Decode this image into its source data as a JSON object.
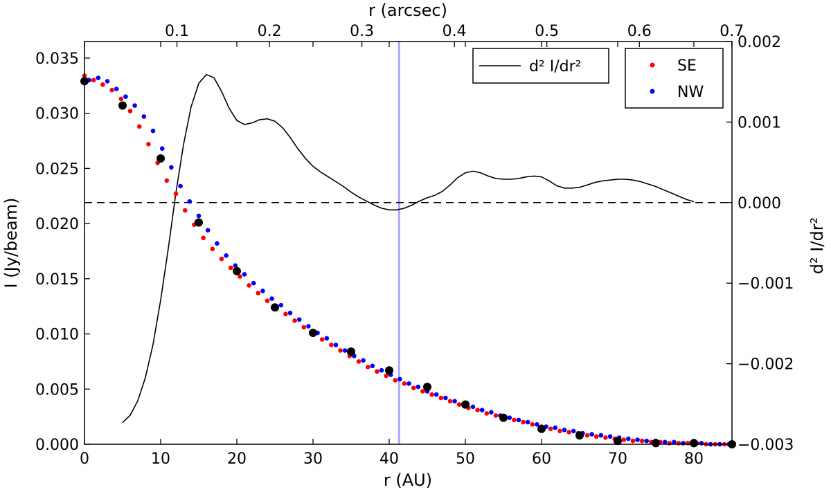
{
  "chart_data": {
    "type": "scatter",
    "x_bottom": {
      "label": "r (AU)",
      "range": [
        0,
        85
      ],
      "ticks": [
        0,
        10,
        20,
        30,
        40,
        50,
        60,
        70,
        80
      ],
      "tick_labels": [
        "0",
        "10",
        "20",
        "30",
        "40",
        "50",
        "60",
        "70",
        "80"
      ]
    },
    "x_top": {
      "label": "r (arcsec)",
      "range_au": [
        0,
        85
      ],
      "au_per_arcsec": 121.4,
      "ticks": [
        0.1,
        0.2,
        0.3,
        0.4,
        0.5,
        0.6,
        0.7
      ],
      "tick_labels": [
        "0.1",
        "0.2",
        "0.3",
        "0.4",
        "0.5",
        "0.6",
        "0.7"
      ]
    },
    "y_left": {
      "label": "I (Jy/beam)",
      "range": [
        0,
        0.0365
      ],
      "ticks": [
        0,
        0.005,
        0.01,
        0.015,
        0.02,
        0.025,
        0.03,
        0.035
      ],
      "tick_labels": [
        "0.000",
        "0.005",
        "0.010",
        "0.015",
        "0.020",
        "0.025",
        "0.030",
        "0.035"
      ]
    },
    "y_right": {
      "label": "d² I/dr²",
      "range": [
        -0.003,
        0.002
      ],
      "ticks": [
        -0.003,
        -0.002,
        -0.001,
        0,
        0.001,
        0.002
      ],
      "tick_labels": [
        "−0.003",
        "−0.002",
        "−0.001",
        "0.000",
        "0.001",
        "0.002"
      ]
    },
    "vertical_line": {
      "x": 41.3,
      "color": "#aaaaff"
    },
    "zero_line": {
      "y": 0,
      "style": "dashed"
    },
    "colors": {
      "SE": "#ff0000",
      "NW": "#0000ff",
      "model": "#000000",
      "curve": "#000000"
    },
    "legend_curve": {
      "label": "d² I/dr²",
      "position": "top-center"
    },
    "legend_points": {
      "labels": [
        "SE",
        "NW"
      ],
      "position": "top-right"
    },
    "series": [
      {
        "name": "SE",
        "kind": "points",
        "x": [
          0,
          1.2,
          2.4,
          3.6,
          4.8,
          6.0,
          7.2,
          8.4,
          9.6,
          10.8,
          12.0,
          13.2,
          14.4,
          15.6,
          16.8,
          18.0,
          19.2,
          20.4,
          21.6,
          22.8,
          24.0,
          25.2,
          26.4,
          27.6,
          28.8,
          30.0,
          31.2,
          32.4,
          33.6,
          34.8,
          36.0,
          37.2,
          38.4,
          39.6,
          40.8,
          42.0,
          43.2,
          44.4,
          45.6,
          46.8,
          48.0,
          49.2,
          50.4,
          51.6,
          52.8,
          54.0,
          55.2,
          56.4,
          57.6,
          58.8,
          60.0,
          61.2,
          62.4,
          63.6,
          64.8,
          66.0,
          67.2,
          68.4,
          69.6,
          70.8,
          72.0,
          73.2,
          74.4,
          75.6,
          76.8,
          78.0,
          79.2,
          80.4,
          81.6,
          82.8,
          84.0
        ],
        "y": [
          0.0334,
          0.033,
          0.0326,
          0.0321,
          0.0313,
          0.0302,
          0.0288,
          0.0272,
          0.0255,
          0.0239,
          0.0227,
          0.0212,
          0.0199,
          0.0187,
          0.0177,
          0.0168,
          0.016,
          0.0152,
          0.0144,
          0.0137,
          0.013,
          0.0124,
          0.0118,
          0.0112,
          0.0106,
          0.01,
          0.0095,
          0.009,
          0.0085,
          0.008,
          0.0075,
          0.007,
          0.0066,
          0.0062,
          0.0058,
          0.0055,
          0.0051,
          0.0048,
          0.0045,
          0.0042,
          0.0039,
          0.0036,
          0.0033,
          0.0031,
          0.0028,
          0.0026,
          0.0024,
          0.0022,
          0.002,
          0.0018,
          0.0016,
          0.0014,
          0.0012,
          0.0011,
          0.001,
          0.0008,
          0.0007,
          0.0006,
          0.0005,
          0.0004,
          0.0003,
          0.0003,
          0.0002,
          0.0002,
          0.0001,
          0.0001,
          0.0001,
          0.0001,
          0.0,
          0.0,
          0.0
        ]
      },
      {
        "name": "NW",
        "kind": "points",
        "x": [
          0.6,
          1.8,
          3.0,
          4.2,
          5.4,
          6.6,
          7.8,
          9.0,
          10.2,
          11.4,
          12.6,
          13.8,
          15.0,
          16.2,
          17.4,
          18.6,
          19.8,
          21.0,
          22.2,
          23.4,
          24.6,
          25.8,
          27.0,
          28.2,
          29.4,
          30.6,
          31.8,
          33.0,
          34.2,
          35.4,
          36.6,
          37.8,
          39.0,
          40.2,
          41.4,
          42.6,
          43.8,
          45.0,
          46.2,
          47.4,
          48.6,
          49.8,
          51.0,
          52.2,
          53.4,
          54.6,
          55.8,
          57.0,
          58.2,
          59.4,
          60.6,
          61.8,
          63.0,
          64.2,
          65.4,
          66.6,
          67.8,
          69.0,
          70.2,
          71.4,
          72.6,
          73.8,
          75.0,
          76.2,
          77.4,
          78.6,
          79.8,
          81.0,
          82.2,
          83.4,
          84.6
        ],
        "y": [
          0.033,
          0.0332,
          0.0329,
          0.0322,
          0.0315,
          0.0307,
          0.0297,
          0.0284,
          0.0268,
          0.0251,
          0.0234,
          0.022,
          0.0207,
          0.0194,
          0.0182,
          0.0171,
          0.0162,
          0.0154,
          0.0146,
          0.0139,
          0.0132,
          0.0126,
          0.0119,
          0.0113,
          0.0107,
          0.0101,
          0.0096,
          0.009,
          0.0085,
          0.008,
          0.0076,
          0.0071,
          0.0067,
          0.0063,
          0.0059,
          0.0055,
          0.0052,
          0.0048,
          0.0045,
          0.0042,
          0.0039,
          0.0036,
          0.0034,
          0.0031,
          0.0029,
          0.0026,
          0.0024,
          0.0022,
          0.002,
          0.0018,
          0.0016,
          0.0015,
          0.0013,
          0.0012,
          0.001,
          0.0009,
          0.0008,
          0.0007,
          0.0006,
          0.0005,
          0.0004,
          0.0003,
          0.0003,
          0.0002,
          0.0002,
          0.0001,
          0.0001,
          0.0001,
          0.0,
          0.0,
          0.0
        ]
      },
      {
        "name": "model",
        "kind": "large-points",
        "x": [
          0,
          5,
          10,
          15,
          20,
          25,
          30,
          35,
          40,
          45,
          50,
          55,
          60,
          65,
          70,
          75,
          80,
          85
        ],
        "y": [
          0.0329,
          0.0307,
          0.0259,
          0.0201,
          0.0157,
          0.0124,
          0.0101,
          0.0084,
          0.0067,
          0.0052,
          0.0036,
          0.0024,
          0.0014,
          0.0008,
          0.0003,
          0.0001,
          0.0001,
          0.0
        ]
      },
      {
        "name": "d² I/dr²",
        "kind": "line",
        "axis": "right",
        "x": [
          5,
          6,
          7,
          8,
          9,
          10,
          11,
          12,
          13,
          14,
          15,
          16,
          17,
          18,
          19,
          20,
          21,
          22,
          23,
          24,
          25,
          26,
          27,
          28,
          29,
          30,
          31,
          32,
          33,
          34,
          35,
          36,
          37,
          38,
          39,
          40,
          41,
          42,
          43,
          44,
          45,
          46,
          47,
          48,
          49,
          50,
          51,
          52,
          53,
          54,
          55,
          56,
          57,
          58,
          59,
          60,
          61,
          62,
          63,
          64,
          65,
          66,
          67,
          68,
          69,
          70,
          71,
          72,
          73,
          74,
          75,
          76,
          77,
          78,
          79,
          80
        ],
        "y": [
          -0.00273,
          -0.00264,
          -0.00246,
          -0.00217,
          -0.00176,
          -0.00121,
          -0.00057,
          0.00012,
          0.00072,
          0.00119,
          0.00148,
          0.00159,
          0.00155,
          0.00138,
          0.00117,
          0.00102,
          0.00097,
          0.00099,
          0.00103,
          0.00104,
          0.00101,
          0.00093,
          0.00081,
          0.00067,
          0.00055,
          0.00045,
          0.00038,
          0.00032,
          0.00026,
          0.0002,
          0.00013,
          7e-05,
          2e-05,
          -3e-05,
          -7e-05,
          -9e-05,
          -9e-05,
          -7e-05,
          -3e-05,
          2e-05,
          6e-05,
          9e-05,
          0.00014,
          0.00022,
          0.00031,
          0.00037,
          0.00039,
          0.00037,
          0.00033,
          0.0003,
          0.00029,
          0.00029,
          0.0003,
          0.00032,
          0.00033,
          0.00032,
          0.00027,
          0.00021,
          0.00018,
          0.00018,
          0.00019,
          0.00022,
          0.00025,
          0.00027,
          0.00028,
          0.00029,
          0.00029,
          0.00028,
          0.00026,
          0.00023,
          0.0002,
          0.00016,
          0.00012,
          8e-05,
          4e-05,
          1e-05
        ]
      }
    ]
  }
}
